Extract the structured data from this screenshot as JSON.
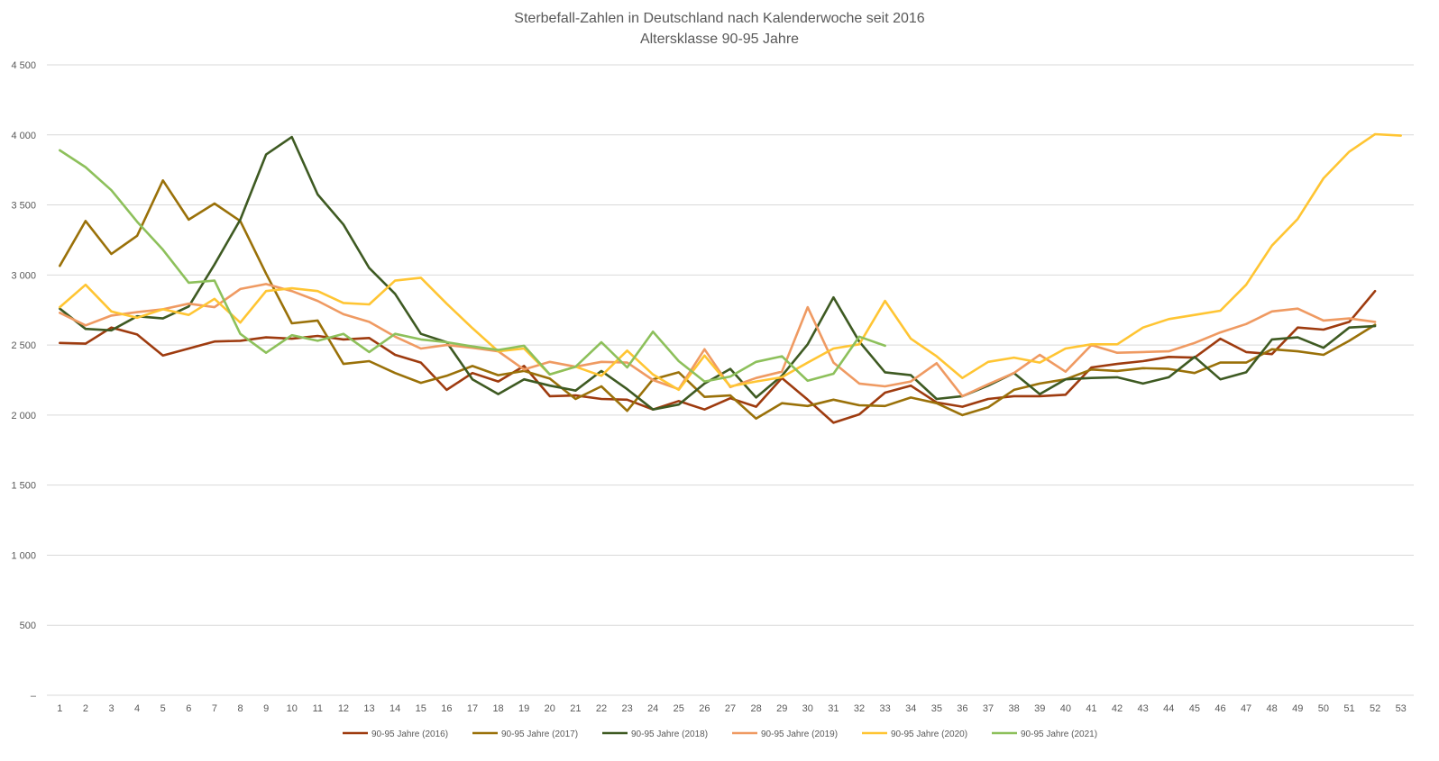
{
  "chart_data": {
    "type": "line",
    "title": "Sterbefall-Zahlen in Deutschland nach Kalenderwoche seit 2016",
    "subtitle": "Altersklasse 90-95 Jahre",
    "xlabel": "",
    "ylabel": "",
    "ylim": [
      0,
      4500
    ],
    "yticks": [
      0,
      500,
      1000,
      1500,
      2000,
      2500,
      3000,
      3500,
      4000,
      4500
    ],
    "ytick_labels": [
      "–",
      "500",
      "1 000",
      "1 500",
      "2 000",
      "2 500",
      "3 000",
      "3 500",
      "4 000",
      "4 500"
    ],
    "categories": [
      "1",
      "2",
      "3",
      "4",
      "5",
      "6",
      "7",
      "8",
      "9",
      "10",
      "11",
      "12",
      "13",
      "14",
      "15",
      "16",
      "17",
      "18",
      "19",
      "20",
      "21",
      "22",
      "23",
      "24",
      "25",
      "26",
      "27",
      "28",
      "29",
      "30",
      "31",
      "32",
      "33",
      "34",
      "35",
      "36",
      "37",
      "38",
      "39",
      "40",
      "41",
      "42",
      "43",
      "44",
      "45",
      "46",
      "47",
      "48",
      "49",
      "50",
      "51",
      "52",
      "53"
    ],
    "grid": true,
    "legend_position": "bottom",
    "series": [
      {
        "name": "90-95 Jahre (2016)",
        "color": "#9e3b0f",
        "values": [
          2515,
          2510,
          2625,
          2575,
          2425,
          2475,
          2525,
          2530,
          2555,
          2545,
          2565,
          2540,
          2550,
          2430,
          2375,
          2180,
          2300,
          2240,
          2350,
          2135,
          2140,
          2115,
          2110,
          2040,
          2100,
          2040,
          2120,
          2060,
          2265,
          2110,
          1945,
          2005,
          2160,
          2210,
          2090,
          2060,
          2115,
          2135,
          2135,
          2145,
          2340,
          2365,
          2385,
          2415,
          2410,
          2545,
          2450,
          2435,
          2625,
          2610,
          2665,
          2885,
          null
        ]
      },
      {
        "name": "90-95 Jahre (2017)",
        "color": "#9a7109",
        "values": [
          3065,
          3385,
          3150,
          3280,
          3675,
          3395,
          3510,
          3385,
          3010,
          2655,
          2675,
          2365,
          2385,
          2300,
          2230,
          2280,
          2350,
          2285,
          2315,
          2260,
          2115,
          2205,
          2030,
          2255,
          2305,
          2130,
          2140,
          1975,
          2085,
          2065,
          2110,
          2070,
          2065,
          2125,
          2085,
          2000,
          2055,
          2180,
          2225,
          2255,
          2325,
          2315,
          2335,
          2330,
          2300,
          2375,
          2375,
          2470,
          2455,
          2430,
          2530,
          2645,
          null
        ]
      },
      {
        "name": "90-95 Jahre (2018)",
        "color": "#3e5a22",
        "values": [
          2760,
          2615,
          2605,
          2705,
          2690,
          2775,
          3075,
          3395,
          3860,
          3985,
          3575,
          3360,
          3050,
          2865,
          2580,
          2520,
          2255,
          2150,
          2255,
          2210,
          2175,
          2315,
          2185,
          2040,
          2075,
          2225,
          2330,
          2125,
          2280,
          2505,
          2840,
          2525,
          2305,
          2285,
          2115,
          2135,
          2210,
          2300,
          2150,
          2255,
          2265,
          2270,
          2225,
          2270,
          2415,
          2255,
          2305,
          2540,
          2555,
          2480,
          2625,
          2635,
          null
        ]
      },
      {
        "name": "90-95 Jahre (2019)",
        "color": "#ef9a62",
        "values": [
          2730,
          2640,
          2710,
          2735,
          2755,
          2795,
          2770,
          2900,
          2935,
          2885,
          2815,
          2720,
          2665,
          2560,
          2475,
          2500,
          2480,
          2455,
          2325,
          2380,
          2345,
          2380,
          2375,
          2250,
          2185,
          2470,
          2200,
          2265,
          2310,
          2770,
          2375,
          2225,
          2205,
          2240,
          2370,
          2135,
          2220,
          2300,
          2430,
          2310,
          2500,
          2445,
          2450,
          2455,
          2515,
          2590,
          2650,
          2740,
          2760,
          2675,
          2690,
          2665,
          null
        ]
      },
      {
        "name": "90-95 Jahre (2020)",
        "color": "#ffc533",
        "values": [
          2770,
          2930,
          2740,
          2695,
          2755,
          2715,
          2830,
          2660,
          2885,
          2905,
          2885,
          2800,
          2790,
          2960,
          2980,
          2795,
          2620,
          2455,
          2475,
          2290,
          2345,
          2280,
          2460,
          2290,
          2180,
          2425,
          2205,
          2240,
          2270,
          2375,
          2475,
          2505,
          2815,
          2545,
          2420,
          2265,
          2380,
          2410,
          2375,
          2475,
          2505,
          2505,
          2625,
          2685,
          2715,
          2745,
          2930,
          3210,
          3400,
          3690,
          3880,
          4005,
          3995
        ]
      },
      {
        "name": "90-95 Jahre (2021)",
        "color": "#8dc05b",
        "values": [
          3890,
          3770,
          3605,
          3380,
          3180,
          2945,
          2960,
          2580,
          2445,
          2570,
          2530,
          2580,
          2450,
          2580,
          2540,
          2520,
          2490,
          2465,
          2495,
          2290,
          2345,
          2520,
          2340,
          2595,
          2385,
          2240,
          2275,
          2380,
          2420,
          2245,
          2295,
          2560,
          2495,
          null,
          null,
          null,
          null,
          null,
          null,
          null,
          null,
          null,
          null,
          null,
          null,
          null,
          null,
          null,
          null,
          null,
          null,
          null,
          null
        ]
      }
    ]
  }
}
